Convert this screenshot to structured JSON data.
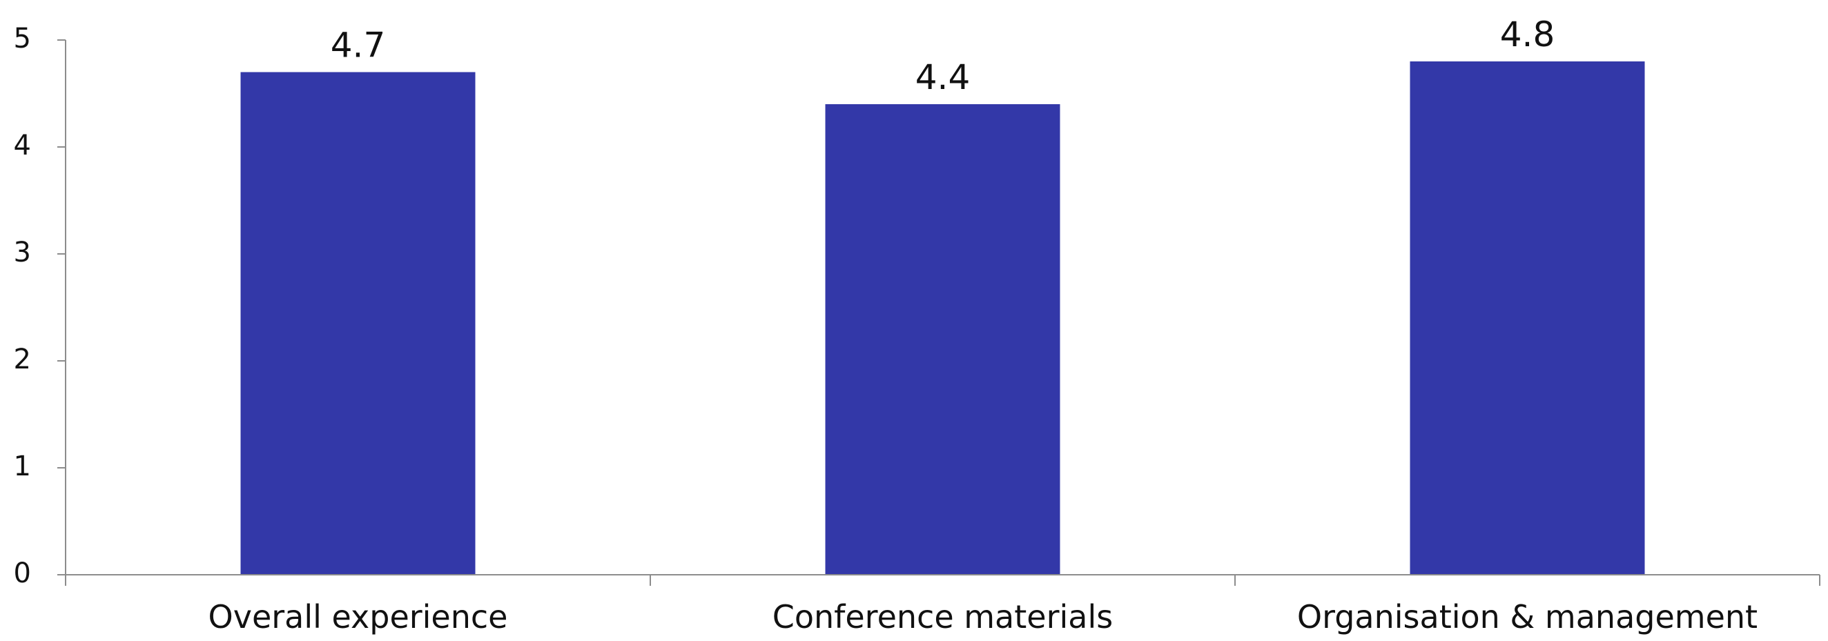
{
  "chart_data": {
    "type": "bar",
    "title": "",
    "xlabel": "",
    "ylabel": "",
    "categories": [
      "Overall experience",
      "Conference materials",
      "Organisation & management"
    ],
    "values": [
      4.7,
      4.4,
      4.8
    ],
    "data_labels": [
      "4.7",
      "4.4",
      "4.8"
    ],
    "ylim": [
      0,
      5
    ],
    "yticks": [
      0,
      1,
      2,
      3,
      4,
      5
    ],
    "ytick_labels": [
      "0",
      "1",
      "2",
      "3",
      "4",
      "5"
    ],
    "grid": false,
    "legend": "none",
    "colors": {
      "bar": "#3338A8",
      "axis": "#8C8C8C"
    }
  }
}
